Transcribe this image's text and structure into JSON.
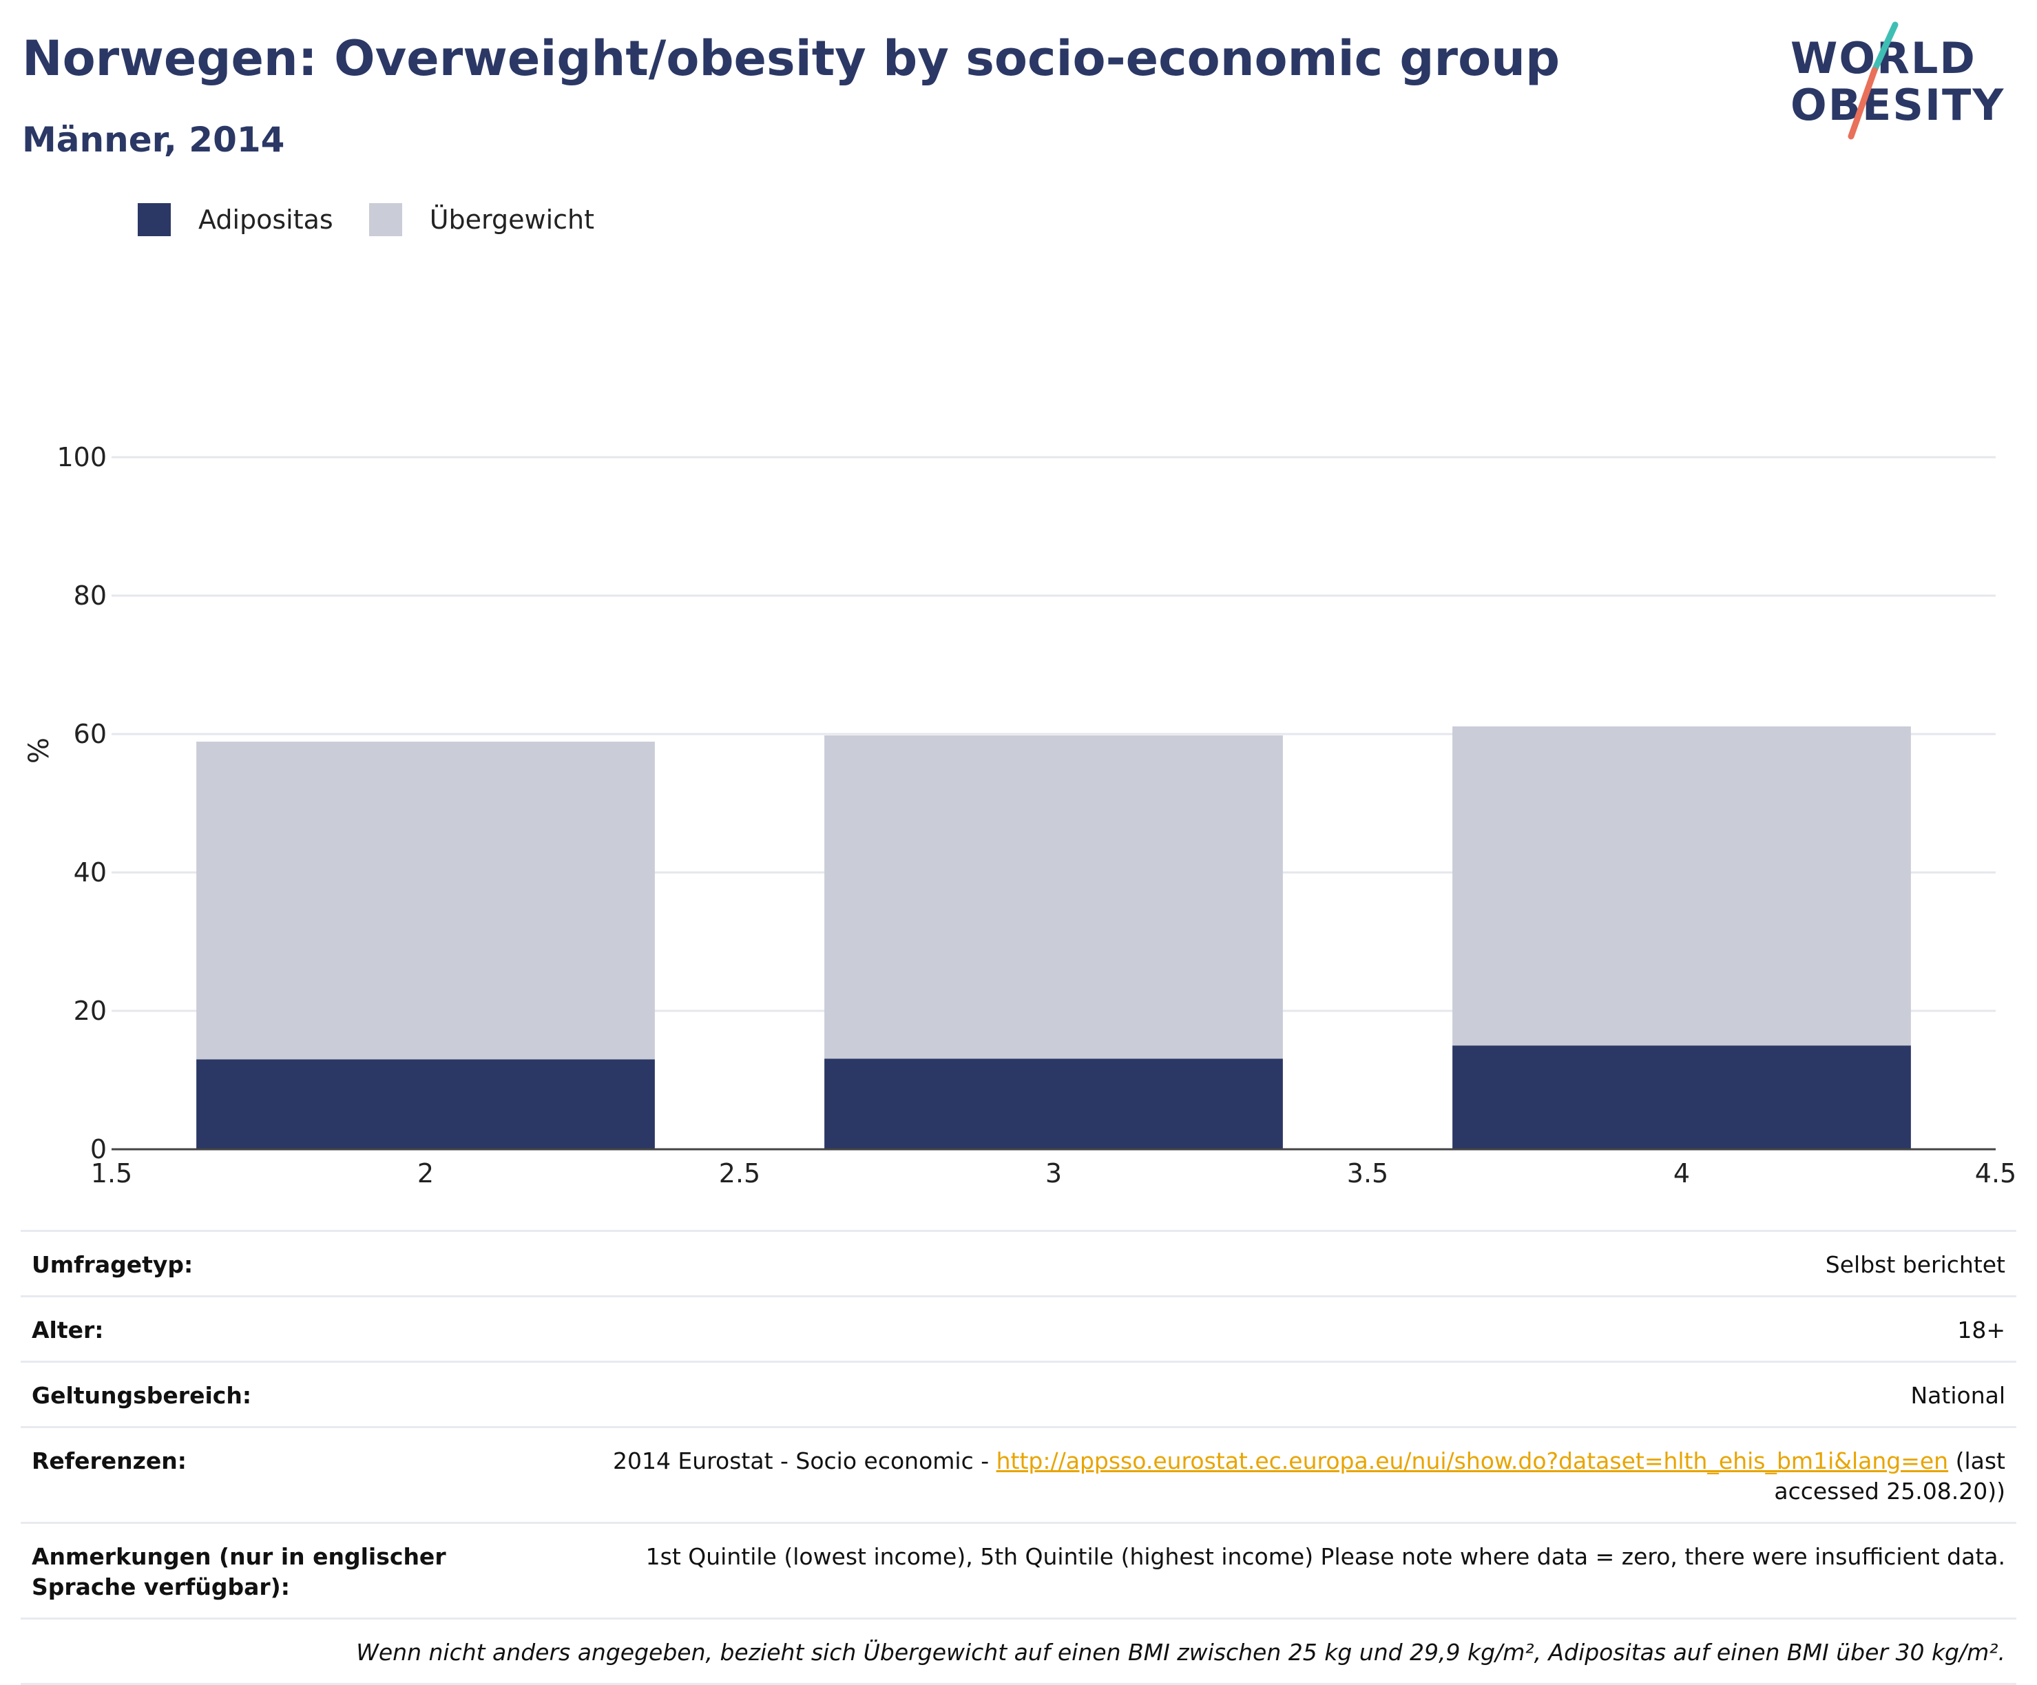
{
  "header": {
    "title": "Norwegen: Overweight/obesity by socio-economic group",
    "subtitle": "Männer, 2014"
  },
  "logo": {
    "line1": "WORLD",
    "line2": "OBESITY",
    "colors": {
      "text": "#2b3865",
      "accent_teal": "#3fbfb4",
      "accent_coral": "#e9705a"
    }
  },
  "legend": [
    {
      "label": "Adipositas",
      "color": "#2b3865"
    },
    {
      "label": "Übergewicht",
      "color": "#caccd7"
    }
  ],
  "chart_data": {
    "type": "bar",
    "stacked": true,
    "x": [
      2,
      3,
      4
    ],
    "series": [
      {
        "name": "Adipositas",
        "values": [
          13.0,
          13.1,
          15.0
        ],
        "color": "#2b3865"
      },
      {
        "name": "Übergewicht",
        "values": [
          45.9,
          46.7,
          46.1
        ],
        "color": "#caccd7"
      }
    ],
    "xlim": [
      1.5,
      4.5
    ],
    "xticks": [
      1.5,
      2,
      2.5,
      3,
      3.5,
      4,
      4.5
    ],
    "xtick_labels": [
      "1.5",
      "2",
      "2.5",
      "3",
      "3.5",
      "4",
      "4.5"
    ],
    "ylim": [
      0,
      100
    ],
    "yticks": [
      0,
      20,
      40,
      60,
      80,
      100
    ],
    "ylabel": "%",
    "grid": true,
    "legend_position": "top-left"
  },
  "info": {
    "rows": [
      {
        "key": "Umfragetyp:",
        "value": "Selbst berichtet"
      },
      {
        "key": "Alter:",
        "value": "18+"
      },
      {
        "key": "Geltungsbereich:",
        "value": "National"
      }
    ],
    "references": {
      "key": "Referenzen:",
      "prefix": "2014 Eurostat - Socio economic - ",
      "link": "http://appsso.eurostat.ec.europa.eu/nui/show.do?dataset=hlth_ehis_bm1i&lang=en",
      "suffix": " (last accessed 25.08.20))"
    },
    "notes": {
      "key": "Anmerkungen (nur in englischer Sprache verfügbar):",
      "value": "1st Quintile (lowest income), 5th Quintile (highest income) Please note where data = zero, there were insufficient data."
    },
    "footnote": "Wenn nicht anders angegeben, bezieht sich Übergewicht auf einen BMI zwischen 25 kg und 29,9 kg/m², Adipositas auf einen BMI über 30 kg/m²."
  }
}
